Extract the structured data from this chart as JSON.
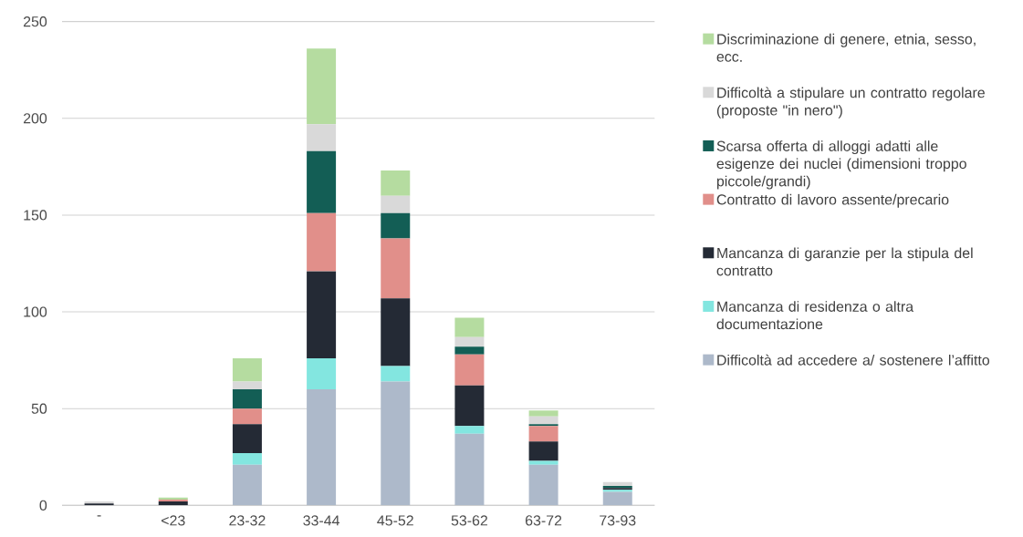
{
  "chart_data": {
    "type": "bar",
    "stacked": true,
    "categories": [
      "-",
      "<23",
      "23-32",
      "33-44",
      "45-52",
      "53-62",
      "63-72",
      "73-93"
    ],
    "series": [
      {
        "name": "Difficoltà ad accedere a/ sostenere l’affitto",
        "color": "#adb9ca",
        "values": [
          0,
          0,
          21,
          60,
          64,
          37,
          21,
          7
        ]
      },
      {
        "name": "Mancanza di residenza o altra documentazione",
        "color": "#83e6e0",
        "values": [
          0,
          0,
          6,
          16,
          8,
          4,
          2,
          1
        ]
      },
      {
        "name": "Mancanza di garanzie per la stipula del contratto",
        "color": "#242a35",
        "values": [
          1,
          2,
          15,
          45,
          35,
          21,
          10,
          1
        ]
      },
      {
        "name": "Contratto di lavoro assente/precario",
        "color": "#e18f8a",
        "values": [
          0,
          1,
          8,
          30,
          31,
          16,
          8,
          0
        ]
      },
      {
        "name": "Scarsa offerta di alloggi adatti alle esigenze dei nuclei (dimensioni troppo piccole/grandi)",
        "color": "#135e55",
        "values": [
          0,
          0,
          10,
          32,
          13,
          4,
          1,
          1
        ]
      },
      {
        "name": "Difficoltà a stipulare un contratto regolare (proposte \"in nero\")",
        "color": "#d9d9d9",
        "values": [
          1,
          0,
          4,
          14,
          9,
          5,
          4,
          2
        ]
      },
      {
        "name": "Discriminazione di genere, etnia, sesso, ecc.",
        "color": "#b5dca0",
        "values": [
          0,
          1,
          12,
          39,
          13,
          10,
          3,
          0
        ]
      }
    ],
    "ylim": [
      0,
      250
    ],
    "yticks": [
      0,
      50,
      100,
      150,
      200,
      250
    ],
    "grid": "y",
    "legend": "right"
  }
}
